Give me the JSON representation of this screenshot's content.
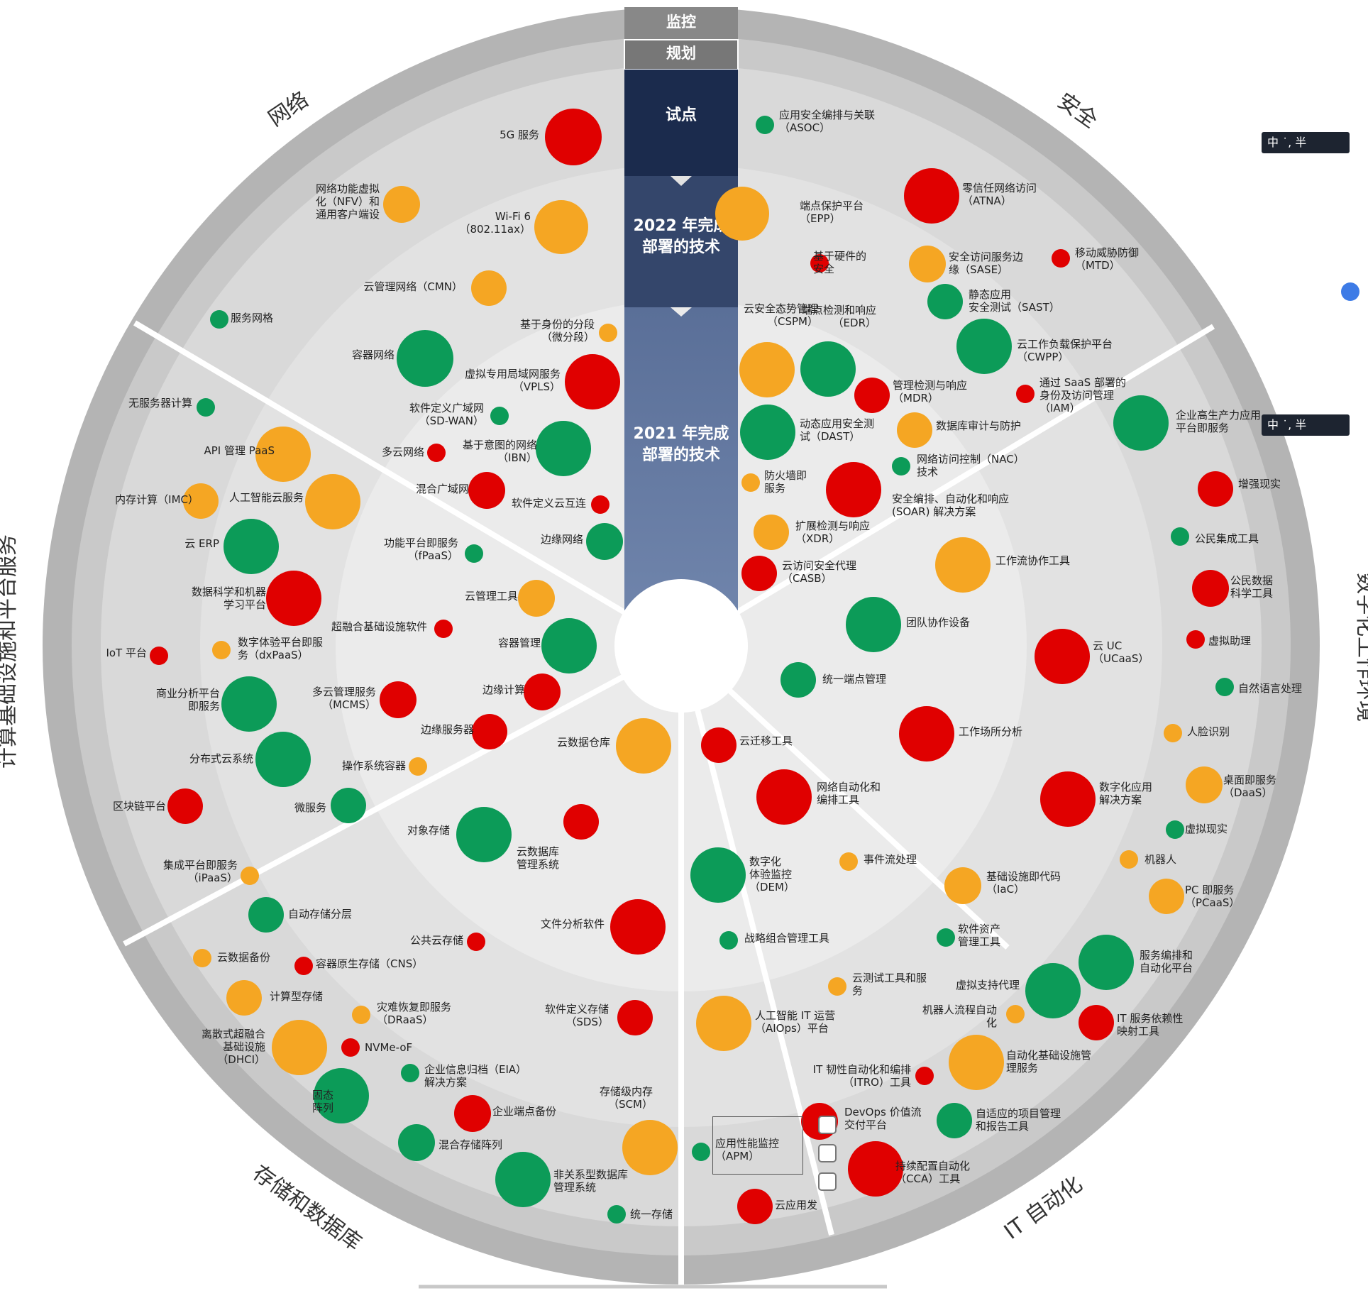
{
  "top_bands": {
    "monitor": "监控",
    "plan": "规划"
  },
  "stages": {
    "pilot": "试点",
    "y2022": "2022 年完成\n部署的技术",
    "y2021": "2021 年完成\n部署的技术"
  },
  "sectors": {
    "network": "网络",
    "security": "安全",
    "digital_workplace": "数字化工作环境",
    "it_automation": "IT 自动化",
    "storage_db": "存储和数据库",
    "compute": "计算基础设施和平台服务"
  },
  "colors": {
    "red": "#e00000",
    "orange": "#f5a623",
    "green": "#0c9b58"
  },
  "tech": [
    {
      "label": "5G 服务",
      "color": "red",
      "r": 40
    },
    {
      "label": "网络功能虚拟\n化（NFV）和\n通用客户端设",
      "color": "orange",
      "r": 26
    },
    {
      "label": "Wi-Fi 6\n（802.11ax）",
      "color": "orange",
      "r": 38
    },
    {
      "label": "云管理网络（CMN）",
      "color": "orange",
      "r": 25
    },
    {
      "label": "服务网格",
      "color": "green",
      "r": 13
    },
    {
      "label": "基于身份的分段\n（微分段）",
      "color": "orange",
      "r": 13
    },
    {
      "label": "容器网络",
      "color": "green",
      "r": 40
    },
    {
      "label": "虚拟专用局域网服务\n（VPLS）",
      "color": "red",
      "r": 39
    },
    {
      "label": "软件定义广域网\n（SD-WAN）",
      "color": "green",
      "r": 13
    },
    {
      "label": "基于意图的网络\n（IBN）",
      "color": "green",
      "r": 39
    },
    {
      "label": "多云网络",
      "color": "red",
      "r": 13
    },
    {
      "label": "混合广域网",
      "color": "red",
      "r": 26
    },
    {
      "label": "软件定义云互连",
      "color": "red",
      "r": 13
    },
    {
      "label": "边缘网络",
      "color": "green",
      "r": 26
    },
    {
      "label": "应用安全编排与关联\n（ASOC）",
      "color": "green",
      "r": 13
    },
    {
      "label": "零信任网络访问\n（ATNA）",
      "color": "red",
      "r": 39
    },
    {
      "label": "端点保护平台\n（EPP）",
      "color": "orange",
      "r": 38
    },
    {
      "label": "基于硬件的\n安全",
      "color": "red",
      "r": 13
    },
    {
      "label": "安全访问服务边\n缘（SASE）",
      "color": "orange",
      "r": 26
    },
    {
      "label": "移动威胁防御\n（MTD）",
      "color": "red",
      "r": 13
    },
    {
      "label": "静态应用\n安全测试（SAST）",
      "color": "green",
      "r": 25
    },
    {
      "label": "云安全态势管理\n（CSPM）",
      "color": "orange",
      "r": 39
    },
    {
      "label": "端点检测和响应\n（EDR）",
      "color": "green",
      "r": 39
    },
    {
      "label": "云工作负载保护平台\n（CWPP）",
      "color": "green",
      "r": 39
    },
    {
      "label": "管理检测与响应\n（MDR）",
      "color": "red",
      "r": 25
    },
    {
      "label": "通过 SaaS 部署的\n身份及访问管理\n（IAM）",
      "color": "red",
      "r": 13
    },
    {
      "label": "动态应用安全测\n试（DAST）",
      "color": "green",
      "r": 39
    },
    {
      "label": "数据库审计与防护",
      "color": "orange",
      "r": 25
    },
    {
      "label": "网络访问控制（NAC）\n技术",
      "color": "green",
      "r": 13
    },
    {
      "label": "防火墙即\n服务",
      "color": "orange",
      "r": 13
    },
    {
      "label": "安全编排、自动化和响应\n(SOAR) 解决方案",
      "color": "red",
      "r": 39
    },
    {
      "label": "扩展检测与响应\n（XDR）",
      "color": "orange",
      "r": 25
    },
    {
      "label": "云访问安全代理\n（CASB）",
      "color": "red",
      "r": 25
    },
    {
      "label": "企业高生产力应用\n平台即服务",
      "color": "green",
      "r": 39
    },
    {
      "label": "增强现实",
      "color": "red",
      "r": 25
    },
    {
      "label": "公民集成工具",
      "color": "green",
      "r": 13
    },
    {
      "label": "公民数据\n科学工具",
      "color": "red",
      "r": 26
    },
    {
      "label": "虚拟助理",
      "color": "red",
      "r": 13
    },
    {
      "label": "自然语言处理",
      "color": "green",
      "r": 13
    },
    {
      "label": "人脸识别",
      "color": "orange",
      "r": 13
    },
    {
      "label": "桌面即服务\n（DaaS）",
      "color": "orange",
      "r": 26
    },
    {
      "label": "虚拟现实",
      "color": "green",
      "r": 13
    },
    {
      "label": "机器人",
      "color": "orange",
      "r": 13
    },
    {
      "label": "PC 即服务\n（PCaaS）",
      "color": "orange",
      "r": 25
    },
    {
      "label": "工作流协作工具",
      "color": "orange",
      "r": 39
    },
    {
      "label": "团队协作设备",
      "color": "green",
      "r": 39
    },
    {
      "label": "云 UC\n（UCaaS）",
      "color": "red",
      "r": 39
    },
    {
      "label": "统一端点管理",
      "color": "green",
      "r": 25
    },
    {
      "label": "工作场所分析",
      "color": "red",
      "r": 39
    },
    {
      "label": "数字化应用\n解决方案",
      "color": "red",
      "r": 39
    },
    {
      "label": "云迁移工具",
      "color": "red",
      "r": 25
    },
    {
      "label": "网络自动化和\n编排工具",
      "color": "red",
      "r": 39
    },
    {
      "label": "数字化\n体验监控\n（DEM）",
      "color": "green",
      "r": 39
    },
    {
      "label": "事件流处理",
      "color": "orange",
      "r": 13
    },
    {
      "label": "基础设施即代码\n（IaC）",
      "color": "orange",
      "r": 26
    },
    {
      "label": "战略组合管理工具",
      "color": "green",
      "r": 13
    },
    {
      "label": "软件资产\n管理工具",
      "color": "green",
      "r": 13
    },
    {
      "label": "服务编排和\n自动化平台",
      "color": "green",
      "r": 39
    },
    {
      "label": "云测试工具和服\n务",
      "color": "orange",
      "r": 13
    },
    {
      "label": "虚拟支持代理",
      "color": "green",
      "r": 39
    },
    {
      "label": "机器人流程自动\n化",
      "color": "orange",
      "r": 13
    },
    {
      "label": "IT 服务依赖性\n映射工具",
      "color": "red",
      "r": 25
    },
    {
      "label": "人工智能 IT 运营\n（AIOps）平台",
      "color": "orange",
      "r": 39
    },
    {
      "label": "自动化基础设施管\n理服务",
      "color": "orange",
      "r": 39
    },
    {
      "label": "IT 韧性自动化和编排\n（ITRO）工具",
      "color": "red",
      "r": 13
    },
    {
      "label": "DevOps 价值流\n交付平台",
      "color": "red",
      "r": 26
    },
    {
      "label": "自适应的项目管理\n和报告工具",
      "color": "green",
      "r": 25
    },
    {
      "label": "应用性能监控\n（APM）",
      "color": "green",
      "r": 13
    },
    {
      "label": "持续配置自动化\n（CCA）工具",
      "color": "red",
      "r": 39
    },
    {
      "label": "云应用发",
      "color": "red",
      "r": 25
    },
    {
      "label": "云数据仓库",
      "color": "orange",
      "r": 39
    },
    {
      "label": "对象存储",
      "color": "green",
      "r": 39
    },
    {
      "label": "云数据库\n管理系统",
      "color": "red",
      "r": 25
    },
    {
      "label": "文件分析软件",
      "color": "red",
      "r": 39
    },
    {
      "label": "公共云存储",
      "color": "red",
      "r": 13
    },
    {
      "label": "自动存储分层",
      "color": "green",
      "r": 25
    },
    {
      "label": "云数据备份",
      "color": "orange",
      "r": 13
    },
    {
      "label": "容器原生存储（CNS）",
      "color": "red",
      "r": 13
    },
    {
      "label": "计算型存储",
      "color": "orange",
      "r": 25
    },
    {
      "label": "灾难恢复即服务\n（DRaaS）",
      "color": "orange",
      "r": 13
    },
    {
      "label": "离散式超融合\n基础设施\n（DHCI）",
      "color": "orange",
      "r": 39
    },
    {
      "label": "NVMe-oF",
      "color": "red",
      "r": 13
    },
    {
      "label": "软件定义存储\n（SDS）",
      "color": "red",
      "r": 25
    },
    {
      "label": "企业信息归档（EIA）\n解决方案",
      "color": "green",
      "r": 13
    },
    {
      "label": "固态\n阵列",
      "color": "green",
      "r": 39
    },
    {
      "label": "企业端点备份",
      "color": "red",
      "r": 26
    },
    {
      "label": "存储级内存\n（SCM）",
      "color": "orange",
      "r": 39
    },
    {
      "label": "混合存储阵列",
      "color": "green",
      "r": 26
    },
    {
      "label": "非关系型数据库\n管理系统",
      "color": "green",
      "r": 39
    },
    {
      "label": "统一存储",
      "color": "green",
      "r": 13
    },
    {
      "label": "无服务器计算",
      "color": "green",
      "r": 13
    },
    {
      "label": "API 管理 PaaS",
      "color": "orange",
      "r": 39
    },
    {
      "label": "内存计算（IMC）",
      "color": "orange",
      "r": 25
    },
    {
      "label": "人工智能云服务",
      "color": "orange",
      "r": 39
    },
    {
      "label": "云 ERP",
      "color": "green",
      "r": 39
    },
    {
      "label": "数据科学和机器\n学习平台",
      "color": "red",
      "r": 39
    },
    {
      "label": "IoT 平台",
      "color": "red",
      "r": 13
    },
    {
      "label": "数字体验平台即服\n务（dxPaaS）",
      "color": "orange",
      "r": 13
    },
    {
      "label": "功能平台即服务\n（fPaaS）",
      "color": "green",
      "r": 13
    },
    {
      "label": "云管理工具",
      "color": "orange",
      "r": 26
    },
    {
      "label": "超融合基础设施软件",
      "color": "red",
      "r": 13
    },
    {
      "label": "容器管理",
      "color": "green",
      "r": 39
    },
    {
      "label": "商业分析平台\n即服务",
      "color": "green",
      "r": 39
    },
    {
      "label": "多云管理服务\n（MCMS）",
      "color": "red",
      "r": 26
    },
    {
      "label": "边缘计算",
      "color": "red",
      "r": 26
    },
    {
      "label": "边缘服务器",
      "color": "red",
      "r": 25
    },
    {
      "label": "分布式云系统",
      "color": "green",
      "r": 39
    },
    {
      "label": "操作系统容器",
      "color": "orange",
      "r": 13
    },
    {
      "label": "区块链平台",
      "color": "red",
      "r": 25
    },
    {
      "label": "微服务",
      "color": "green",
      "r": 25
    },
    {
      "label": "集成平台即服务\n（iPaaS）",
      "color": "orange",
      "r": 13
    }
  ],
  "ime": "中 ˙, 半"
}
